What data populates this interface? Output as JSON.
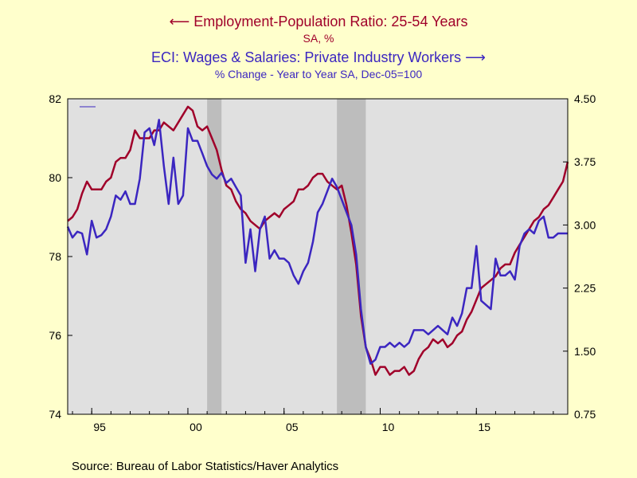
{
  "titles": {
    "left_series_title": "Employment-Population Ratio: 25-54 Years",
    "left_series_sub": "SA, %",
    "right_series_title": "ECI: Wages & Salaries: Private Industry Workers",
    "right_series_sub": "% Change - Year to Year    SA, Dec-05=100"
  },
  "source": "Source:  Bureau of Labor Statistics/Haver Analytics",
  "colors": {
    "background": "#FFFFCC",
    "plot_bg": "#E0E0E0",
    "recession": "#BDBDBD",
    "epop": "#A0002A",
    "eci": "#3B26C0"
  },
  "chart_data": {
    "type": "line",
    "x_range": [
      1993.75,
      2019.75
    ],
    "x_ticks": [
      {
        "x": 1995,
        "label": "95"
      },
      {
        "x": 2000,
        "label": "00"
      },
      {
        "x": 2005,
        "label": "05"
      },
      {
        "x": 2010,
        "label": "10"
      },
      {
        "x": 2015,
        "label": "15"
      }
    ],
    "y_left": {
      "range": [
        74,
        82
      ],
      "ticks": [
        "74",
        "76",
        "78",
        "80",
        "82"
      ]
    },
    "y_right": {
      "range": [
        0.75,
        4.5
      ],
      "ticks": [
        "0.75",
        "1.50",
        "2.25",
        "3.00",
        "3.75",
        "4.50"
      ]
    },
    "recessions": [
      [
        2001.0,
        2001.75
      ],
      [
        2007.75,
        2009.25
      ]
    ],
    "series": [
      {
        "name": "Employment-Population Ratio: 25-54 Years",
        "axis": "left",
        "points": [
          [
            1993.75,
            78.9
          ],
          [
            1994.0,
            79.0
          ],
          [
            1994.25,
            79.2
          ],
          [
            1994.5,
            79.6
          ],
          [
            1994.75,
            79.9
          ],
          [
            1995.0,
            79.7
          ],
          [
            1995.25,
            79.7
          ],
          [
            1995.5,
            79.7
          ],
          [
            1995.75,
            79.9
          ],
          [
            1996.0,
            80.0
          ],
          [
            1996.25,
            80.4
          ],
          [
            1996.5,
            80.5
          ],
          [
            1996.75,
            80.5
          ],
          [
            1997.0,
            80.7
          ],
          [
            1997.25,
            81.2
          ],
          [
            1997.5,
            81.0
          ],
          [
            1997.75,
            81.0
          ],
          [
            1998.0,
            81.0
          ],
          [
            1998.25,
            81.2
          ],
          [
            1998.5,
            81.2
          ],
          [
            1998.75,
            81.4
          ],
          [
            1999.0,
            81.3
          ],
          [
            1999.25,
            81.2
          ],
          [
            1999.5,
            81.4
          ],
          [
            1999.75,
            81.6
          ],
          [
            2000.0,
            81.8
          ],
          [
            2000.25,
            81.7
          ],
          [
            2000.5,
            81.3
          ],
          [
            2000.75,
            81.2
          ],
          [
            2001.0,
            81.3
          ],
          [
            2001.25,
            81.0
          ],
          [
            2001.5,
            80.7
          ],
          [
            2001.75,
            80.2
          ],
          [
            2002.0,
            79.8
          ],
          [
            2002.25,
            79.7
          ],
          [
            2002.5,
            79.4
          ],
          [
            2002.75,
            79.2
          ],
          [
            2003.0,
            79.1
          ],
          [
            2003.25,
            78.9
          ],
          [
            2003.5,
            78.8
          ],
          [
            2003.75,
            78.7
          ],
          [
            2004.0,
            78.9
          ],
          [
            2004.25,
            79.0
          ],
          [
            2004.5,
            79.1
          ],
          [
            2004.75,
            79.0
          ],
          [
            2005.0,
            79.2
          ],
          [
            2005.25,
            79.3
          ],
          [
            2005.5,
            79.4
          ],
          [
            2005.75,
            79.7
          ],
          [
            2006.0,
            79.7
          ],
          [
            2006.25,
            79.8
          ],
          [
            2006.5,
            80.0
          ],
          [
            2006.75,
            80.1
          ],
          [
            2007.0,
            80.1
          ],
          [
            2007.25,
            79.9
          ],
          [
            2007.5,
            79.8
          ],
          [
            2007.75,
            79.7
          ],
          [
            2008.0,
            79.8
          ],
          [
            2008.25,
            79.3
          ],
          [
            2008.5,
            78.6
          ],
          [
            2008.75,
            77.8
          ],
          [
            2009.0,
            76.5
          ],
          [
            2009.25,
            75.7
          ],
          [
            2009.5,
            75.4
          ],
          [
            2009.75,
            75.0
          ],
          [
            2010.0,
            75.2
          ],
          [
            2010.25,
            75.2
          ],
          [
            2010.5,
            75.0
          ],
          [
            2010.75,
            75.1
          ],
          [
            2011.0,
            75.1
          ],
          [
            2011.25,
            75.2
          ],
          [
            2011.5,
            75.0
          ],
          [
            2011.75,
            75.1
          ],
          [
            2012.0,
            75.4
          ],
          [
            2012.25,
            75.6
          ],
          [
            2012.5,
            75.7
          ],
          [
            2012.75,
            75.9
          ],
          [
            2013.0,
            75.8
          ],
          [
            2013.25,
            75.9
          ],
          [
            2013.5,
            75.7
          ],
          [
            2013.75,
            75.8
          ],
          [
            2014.0,
            76.0
          ],
          [
            2014.25,
            76.1
          ],
          [
            2014.5,
            76.4
          ],
          [
            2014.75,
            76.6
          ],
          [
            2015.0,
            76.9
          ],
          [
            2015.25,
            77.2
          ],
          [
            2015.5,
            77.3
          ],
          [
            2015.75,
            77.4
          ],
          [
            2016.0,
            77.5
          ],
          [
            2016.25,
            77.7
          ],
          [
            2016.5,
            77.8
          ],
          [
            2016.75,
            77.8
          ],
          [
            2017.0,
            78.1
          ],
          [
            2017.25,
            78.3
          ],
          [
            2017.5,
            78.5
          ],
          [
            2017.75,
            78.7
          ],
          [
            2018.0,
            78.9
          ],
          [
            2018.25,
            79.0
          ],
          [
            2018.5,
            79.2
          ],
          [
            2018.75,
            79.3
          ],
          [
            2019.0,
            79.5
          ],
          [
            2019.25,
            79.7
          ],
          [
            2019.5,
            79.9
          ],
          [
            2019.75,
            80.4
          ]
        ]
      },
      {
        "name": "ECI: Wages & Salaries: Private Industry Workers",
        "axis": "right",
        "points": [
          [
            1993.75,
            2.98
          ],
          [
            1994.0,
            2.85
          ],
          [
            1994.25,
            2.92
          ],
          [
            1994.5,
            2.9
          ],
          [
            1994.75,
            2.65
          ],
          [
            1995.0,
            3.05
          ],
          [
            1995.25,
            2.85
          ],
          [
            1995.5,
            2.88
          ],
          [
            1995.75,
            2.95
          ],
          [
            1996.0,
            3.1
          ],
          [
            1996.25,
            3.35
          ],
          [
            1996.5,
            3.3
          ],
          [
            1996.75,
            3.4
          ],
          [
            1997.0,
            3.25
          ],
          [
            1997.25,
            3.25
          ],
          [
            1997.5,
            3.55
          ],
          [
            1997.75,
            4.1
          ],
          [
            1998.0,
            4.15
          ],
          [
            1998.25,
            3.95
          ],
          [
            1998.5,
            4.25
          ],
          [
            1998.75,
            3.7
          ],
          [
            1999.0,
            3.25
          ],
          [
            1999.25,
            3.8
          ],
          [
            1999.5,
            3.25
          ],
          [
            1999.75,
            3.35
          ],
          [
            2000.0,
            4.15
          ],
          [
            2000.25,
            4.0
          ],
          [
            2000.5,
            4.0
          ],
          [
            2000.75,
            3.85
          ],
          [
            2001.0,
            3.7
          ],
          [
            2001.25,
            3.6
          ],
          [
            2001.5,
            3.55
          ],
          [
            2001.75,
            3.62
          ],
          [
            2002.0,
            3.5
          ],
          [
            2002.25,
            3.55
          ],
          [
            2002.5,
            3.45
          ],
          [
            2002.75,
            3.35
          ],
          [
            2003.0,
            2.55
          ],
          [
            2003.25,
            2.95
          ],
          [
            2003.5,
            2.45
          ],
          [
            2003.75,
            2.95
          ],
          [
            2004.0,
            3.1
          ],
          [
            2004.25,
            2.6
          ],
          [
            2004.5,
            2.7
          ],
          [
            2004.75,
            2.6
          ],
          [
            2005.0,
            2.6
          ],
          [
            2005.25,
            2.55
          ],
          [
            2005.5,
            2.4
          ],
          [
            2005.75,
            2.3
          ],
          [
            2006.0,
            2.45
          ],
          [
            2006.25,
            2.55
          ],
          [
            2006.5,
            2.8
          ],
          [
            2006.75,
            3.15
          ],
          [
            2007.0,
            3.25
          ],
          [
            2007.5,
            3.55
          ],
          [
            2007.75,
            3.45
          ],
          [
            2008.0,
            3.3
          ],
          [
            2008.25,
            3.15
          ],
          [
            2008.5,
            3.0
          ],
          [
            2008.75,
            2.65
          ],
          [
            2009.0,
            2.0
          ],
          [
            2009.25,
            1.55
          ],
          [
            2009.5,
            1.35
          ],
          [
            2009.75,
            1.4
          ],
          [
            2010.0,
            1.55
          ],
          [
            2010.25,
            1.55
          ],
          [
            2010.5,
            1.6
          ],
          [
            2010.75,
            1.55
          ],
          [
            2011.0,
            1.6
          ],
          [
            2011.25,
            1.55
          ],
          [
            2011.5,
            1.6
          ],
          [
            2011.75,
            1.75
          ],
          [
            2012.0,
            1.75
          ],
          [
            2012.25,
            1.75
          ],
          [
            2012.5,
            1.7
          ],
          [
            2012.75,
            1.75
          ],
          [
            2013.0,
            1.8
          ],
          [
            2013.25,
            1.75
          ],
          [
            2013.5,
            1.7
          ],
          [
            2013.75,
            1.9
          ],
          [
            2014.0,
            1.8
          ],
          [
            2014.25,
            1.95
          ],
          [
            2014.5,
            2.25
          ],
          [
            2014.75,
            2.25
          ],
          [
            2015.0,
            2.75
          ],
          [
            2015.25,
            2.1
          ],
          [
            2015.5,
            2.05
          ],
          [
            2015.75,
            2.0
          ],
          [
            2016.0,
            2.6
          ],
          [
            2016.25,
            2.4
          ],
          [
            2016.5,
            2.4
          ],
          [
            2016.75,
            2.45
          ],
          [
            2017.0,
            2.35
          ],
          [
            2017.25,
            2.75
          ],
          [
            2017.5,
            2.9
          ],
          [
            2017.75,
            2.95
          ],
          [
            2018.0,
            2.9
          ],
          [
            2018.25,
            3.05
          ],
          [
            2018.5,
            3.1
          ],
          [
            2018.75,
            2.85
          ],
          [
            2019.0,
            2.85
          ],
          [
            2019.25,
            2.9
          ],
          [
            2019.5,
            2.9
          ],
          [
            2019.75,
            2.9
          ]
        ]
      }
    ]
  }
}
